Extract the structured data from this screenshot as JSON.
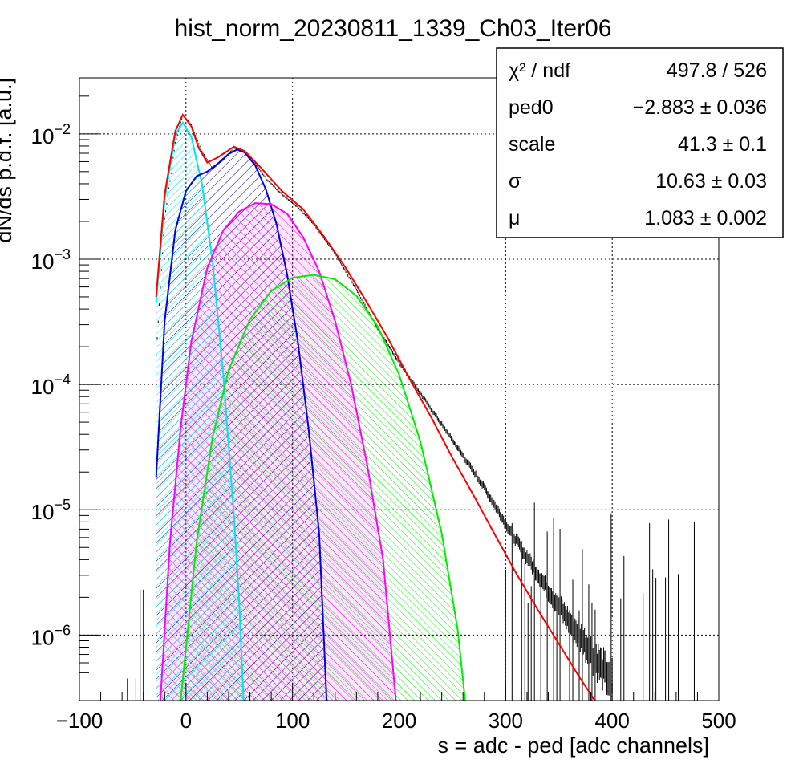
{
  "chart_data": {
    "type": "line",
    "title": "hist_norm_20230811_1339_Ch03_Iter06",
    "xlabel": "s = adc - ped [adc channels]",
    "ylabel": "dN/ds p.d.f. [a.u.]",
    "xlim": [
      -100,
      500
    ],
    "ylim": [
      3e-07,
      0.028
    ],
    "yscale": "log",
    "grid": true,
    "x_ticks": [
      "−100",
      "0",
      "100",
      "200",
      "300",
      "400",
      "500"
    ],
    "x_tick_values": [
      -100,
      0,
      100,
      200,
      300,
      400,
      500
    ],
    "y_tick_exponents": [
      "−2",
      "−3",
      "−4",
      "−5",
      "−6"
    ],
    "y_tick_values": [
      0.01,
      0.001,
      0.0001,
      1e-05,
      1e-06
    ],
    "stats_box": {
      "placement": "top-right",
      "rows": [
        {
          "name": "χ² / ndf",
          "value": "497.8 / 526"
        },
        {
          "name": "ped0",
          "value": "−2.883 ± 0.036"
        },
        {
          "name": "scale",
          "value": "41.3 ± 0.1"
        },
        {
          "name": "σ",
          "value": "10.63 ± 0.03"
        },
        {
          "name": "μ",
          "value": "1.083 ± 0.002"
        }
      ]
    },
    "fit": {
      "ped0": -2.883,
      "scale": 41.3,
      "sigma": 10.63,
      "mu": 1.083
    },
    "series": [
      {
        "kind": "histogram",
        "color": "#000000",
        "points": [
          [
            -28,
            0.00017
          ],
          [
            -20,
            0.0021
          ],
          [
            -10,
            0.0085
          ],
          [
            -3,
            0.0142
          ],
          [
            5,
            0.0118
          ],
          [
            15,
            0.0072
          ],
          [
            25,
            0.0053
          ],
          [
            35,
            0.0062
          ],
          [
            45,
            0.0077
          ],
          [
            55,
            0.0072
          ],
          [
            65,
            0.0058
          ],
          [
            75,
            0.0044
          ],
          [
            90,
            0.0033
          ],
          [
            105,
            0.0026
          ],
          [
            120,
            0.0019
          ],
          [
            140,
            0.0011
          ],
          [
            160,
            0.00057
          ],
          [
            180,
            0.00028
          ],
          [
            200,
            0.00015
          ],
          [
            220,
            8.5e-05
          ],
          [
            240,
            4.8e-05
          ],
          [
            260,
            2.7e-05
          ],
          [
            280,
            1.5e-05
          ],
          [
            300,
            7.8e-06
          ],
          [
            320,
            4.2e-06
          ],
          [
            340,
            2.3e-06
          ],
          [
            360,
            1.3e-06
          ],
          [
            380,
            7.5e-07
          ],
          [
            400,
            4.5e-07
          ]
        ]
      },
      {
        "kind": "total-fit",
        "color": "#ff0000",
        "points": [
          [
            -28,
            0.0005
          ],
          [
            -20,
            0.0033
          ],
          [
            -10,
            0.0105
          ],
          [
            -3,
            0.0142
          ],
          [
            5,
            0.0115
          ],
          [
            12,
            0.0077
          ],
          [
            20,
            0.0059
          ],
          [
            30,
            0.0065
          ],
          [
            45,
            0.0079
          ],
          [
            55,
            0.0073
          ],
          [
            70,
            0.0054
          ],
          [
            90,
            0.0035
          ],
          [
            110,
            0.0025
          ],
          [
            130,
            0.0015
          ],
          [
            150,
            0.00085
          ],
          [
            170,
            0.00045
          ],
          [
            190,
            0.00023
          ],
          [
            210,
            0.00011
          ],
          [
            230,
            5.5e-05
          ],
          [
            250,
            2.6e-05
          ],
          [
            270,
            1.3e-05
          ],
          [
            290,
            6.3e-06
          ],
          [
            310,
            3.1e-06
          ],
          [
            330,
            1.6e-06
          ],
          [
            350,
            8.5e-07
          ],
          [
            370,
            4.5e-07
          ],
          [
            390,
            2.5e-07
          ]
        ]
      },
      {
        "kind": "component",
        "color": "#00e5ee",
        "hatch": "#00e5ee",
        "points": [
          [
            -28,
            0.00045
          ],
          [
            -20,
            0.003
          ],
          [
            -10,
            0.0098
          ],
          [
            -3,
            0.0123
          ],
          [
            5,
            0.0095
          ],
          [
            15,
            0.004
          ],
          [
            25,
            0.00095
          ],
          [
            35,
            0.00012
          ],
          [
            45,
            9e-06
          ],
          [
            50,
            1.8e-06
          ],
          [
            54,
            3e-07
          ]
        ]
      },
      {
        "kind": "component",
        "color": "#0000dd",
        "hatch": "#000080",
        "points": [
          [
            -28,
            1.8e-05
          ],
          [
            -20,
            0.00032
          ],
          [
            -10,
            0.0017
          ],
          [
            0,
            0.0035
          ],
          [
            10,
            0.0046
          ],
          [
            20,
            0.005
          ],
          [
            30,
            0.0058
          ],
          [
            40,
            0.0069
          ],
          [
            48,
            0.0075
          ],
          [
            55,
            0.0071
          ],
          [
            65,
            0.0056
          ],
          [
            75,
            0.0036
          ],
          [
            85,
            0.0019
          ],
          [
            95,
            0.00075
          ],
          [
            105,
            0.00022
          ],
          [
            115,
            4.5e-05
          ],
          [
            125,
            6.5e-06
          ],
          [
            132,
            3e-07
          ]
        ]
      },
      {
        "kind": "component",
        "color": "#ff00ff",
        "hatch": "#ff00ff",
        "points": [
          [
            -24,
            3e-07
          ],
          [
            -15,
            5.5e-06
          ],
          [
            -5,
            4.5e-05
          ],
          [
            5,
            0.00022
          ],
          [
            20,
            0.00085
          ],
          [
            35,
            0.0017
          ],
          [
            50,
            0.0024
          ],
          [
            65,
            0.0028
          ],
          [
            80,
            0.00275
          ],
          [
            95,
            0.0023
          ],
          [
            110,
            0.0015
          ],
          [
            125,
            0.0008
          ],
          [
            140,
            0.00032
          ],
          [
            155,
            0.0001
          ],
          [
            170,
            2.3e-05
          ],
          [
            185,
            4e-06
          ],
          [
            197,
            3e-07
          ]
        ]
      },
      {
        "kind": "component",
        "color": "#00ee00",
        "hatch": "#00ee00",
        "points": [
          [
            -5,
            3e-07
          ],
          [
            10,
            5.5e-06
          ],
          [
            25,
            3.8e-05
          ],
          [
            40,
            0.00013
          ],
          [
            60,
            0.00033
          ],
          [
            80,
            0.00056
          ],
          [
            100,
            0.00071
          ],
          [
            120,
            0.00075
          ],
          [
            140,
            0.00069
          ],
          [
            160,
            0.00051
          ],
          [
            180,
            0.00029
          ],
          [
            200,
            0.00012
          ],
          [
            220,
            3.5e-05
          ],
          [
            240,
            6.5e-06
          ],
          [
            255,
            1.1e-06
          ],
          [
            262,
            3e-07
          ]
        ]
      }
    ]
  }
}
